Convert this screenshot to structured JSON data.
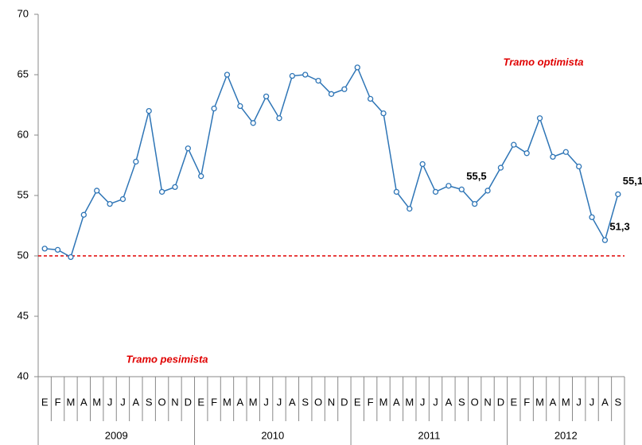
{
  "chart_data": {
    "type": "line",
    "categories": [
      "E",
      "F",
      "M",
      "A",
      "M",
      "J",
      "J",
      "A",
      "S",
      "O",
      "N",
      "D",
      "E",
      "F",
      "M",
      "A",
      "M",
      "J",
      "J",
      "A",
      "S",
      "O",
      "N",
      "D",
      "E",
      "F",
      "M",
      "A",
      "M",
      "J",
      "J",
      "A",
      "S",
      "O",
      "N",
      "D",
      "E",
      "F",
      "M",
      "A",
      "M",
      "J",
      "J",
      "A",
      "S"
    ],
    "years": [
      "2009",
      "2010",
      "2011",
      "2012"
    ],
    "series": [
      {
        "color": "#2e75b6",
        "values": [
          50.6,
          50.5,
          49.9,
          53.4,
          55.4,
          54.3,
          54.7,
          57.8,
          62.0,
          55.3,
          55.7,
          58.9,
          56.6,
          62.2,
          65.0,
          62.4,
          61.0,
          63.2,
          61.4,
          64.9,
          65.0,
          64.5,
          63.4,
          63.8,
          65.6,
          63.0,
          61.8,
          55.3,
          53.9,
          57.6,
          55.3,
          55.8,
          55.5,
          54.3,
          55.4,
          57.3,
          59.2,
          58.5,
          61.4,
          58.2,
          58.6,
          57.4,
          53.2,
          51.3,
          55.1
        ],
        "value_labels": [
          null,
          null,
          null,
          null,
          null,
          null,
          null,
          null,
          null,
          null,
          null,
          null,
          null,
          null,
          null,
          null,
          null,
          null,
          null,
          null,
          null,
          null,
          null,
          null,
          null,
          null,
          null,
          null,
          null,
          null,
          null,
          null,
          "55,5",
          null,
          null,
          null,
          null,
          null,
          null,
          null,
          null,
          null,
          null,
          "51,3",
          "55,1"
        ]
      }
    ],
    "ylim": [
      40,
      70
    ],
    "yticks": [
      40,
      45,
      50,
      55,
      60,
      65,
      70
    ],
    "reference_line": {
      "value": 50,
      "color": "#e00000"
    },
    "annotations": [
      "Tramo optimista",
      "Tramo pesimista"
    ]
  }
}
